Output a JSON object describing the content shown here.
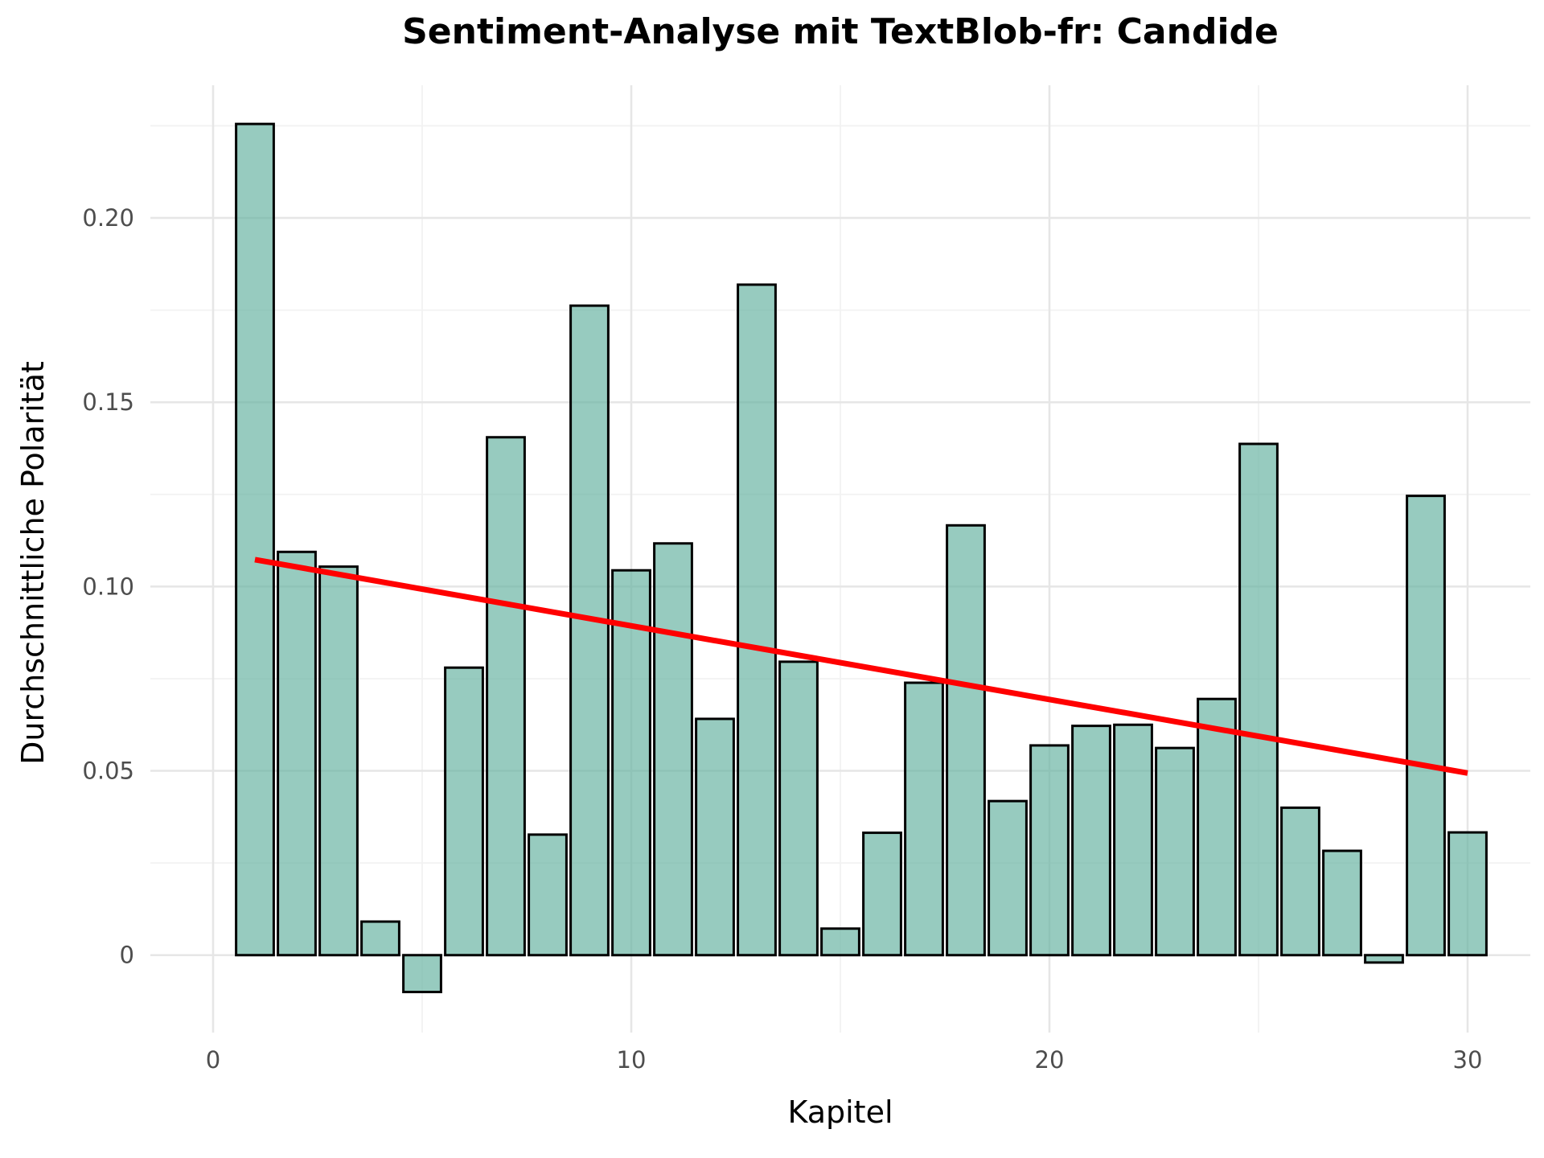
{
  "chart_data": {
    "type": "bar",
    "title": "Sentiment-Analyse mit TextBlob-fr: Candide",
    "xlabel": "Kapitel",
    "ylabel": "Durchschnittliche Polarität",
    "xlim": [
      -1.5,
      31.5
    ],
    "ylim": [
      -0.021,
      0.236
    ],
    "x_ticks": [
      0,
      10,
      20,
      30
    ],
    "x_tick_labels": [
      "0",
      "10",
      "20",
      "30"
    ],
    "y_ticks": [
      0,
      0.05,
      0.1,
      0.15,
      0.2
    ],
    "y_tick_labels": [
      "0",
      "0.05",
      "0.10",
      "0.15",
      "0.20"
    ],
    "grid": true,
    "bar_color": "#66b2a0",
    "bar_edge_color": "#000000",
    "x": [
      1,
      2,
      3,
      4,
      5,
      6,
      7,
      8,
      9,
      10,
      11,
      12,
      13,
      14,
      15,
      16,
      17,
      18,
      19,
      20,
      21,
      22,
      23,
      24,
      25,
      26,
      27,
      28,
      29,
      30
    ],
    "values": [
      0.2255,
      0.1094,
      0.1054,
      0.0091,
      -0.01,
      0.078,
      0.1405,
      0.0327,
      0.1762,
      0.1044,
      0.1117,
      0.0641,
      0.1819,
      0.0796,
      0.0072,
      0.0332,
      0.0739,
      0.1166,
      0.0418,
      0.0569,
      0.0622,
      0.0625,
      0.0562,
      0.0695,
      0.1387,
      0.04,
      0.0283,
      -0.002,
      0.1246,
      0.0333
    ],
    "trendline": {
      "color": "#ff0000",
      "x": [
        1,
        30
      ],
      "y": [
        0.1073,
        0.0494
      ]
    }
  }
}
